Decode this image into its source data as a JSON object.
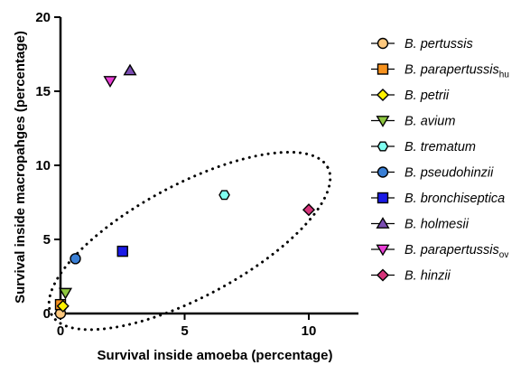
{
  "chart_data": {
    "type": "scatter",
    "title": "",
    "xlabel": "Survival inside amoeba (percentage)",
    "ylabel": "Survival inside macropahges (percentage)",
    "xlim": [
      0,
      12
    ],
    "ylim": [
      0,
      20
    ],
    "xticks": [
      0,
      5,
      10
    ],
    "yticks": [
      0,
      5,
      10,
      15,
      20
    ],
    "grid": false,
    "legend_position": "right",
    "series": [
      {
        "name": "B. pertussis",
        "sub": "",
        "marker": "circle",
        "color": "#FDC87E",
        "x": 0.0,
        "y": 0.0
      },
      {
        "name": "B. parapertussis",
        "sub": "hu",
        "marker": "square",
        "color": "#F7921E",
        "x": 0.0,
        "y": 0.6
      },
      {
        "name": "B. petrii",
        "sub": "",
        "marker": "diamond",
        "color": "#FFF200",
        "x": 0.1,
        "y": 0.5
      },
      {
        "name": "B. avium",
        "sub": "",
        "marker": "triangle-down",
        "color": "#8DC63F",
        "x": 0.2,
        "y": 1.4
      },
      {
        "name": "B. trematum",
        "sub": "",
        "marker": "hexagon",
        "color": "#7FFFF0",
        "x": 6.6,
        "y": 8.0
      },
      {
        "name": "B. pseudohinzii",
        "sub": "",
        "marker": "circle",
        "color": "#3A7FD5",
        "x": 0.6,
        "y": 3.7
      },
      {
        "name": "B. bronchiseptica",
        "sub": "",
        "marker": "square",
        "color": "#1A1AE6",
        "x": 2.5,
        "y": 4.2
      },
      {
        "name": "B. holmesii",
        "sub": "",
        "marker": "triangle-up",
        "color": "#7B4DB3",
        "x": 2.8,
        "y": 16.4
      },
      {
        "name": "B. parapertussis",
        "sub": "ov",
        "marker": "triangle-down",
        "color": "#E83FD5",
        "x": 2.0,
        "y": 15.7
      },
      {
        "name": "B. hinzii",
        "sub": "",
        "marker": "diamond",
        "color": "#D6337A",
        "x": 10.0,
        "y": 7.0
      }
    ],
    "annotations": [
      {
        "type": "dotted-ellipse",
        "center": [
          5.2,
          4.9
        ],
        "semi_axis_x": 6.3,
        "semi_axis_y": 3.8,
        "angle_deg": 28
      }
    ]
  }
}
